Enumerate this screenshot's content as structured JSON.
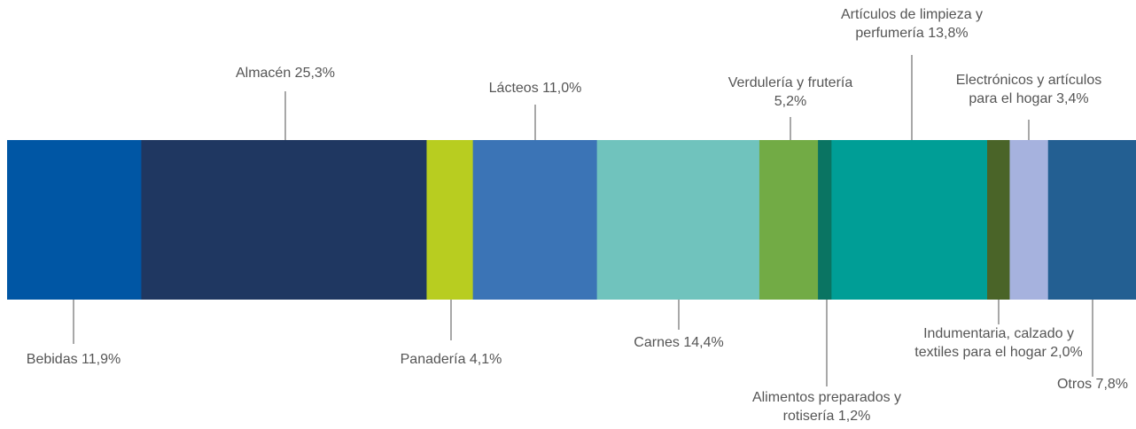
{
  "chart_data": {
    "type": "bar",
    "subtype": "stacked-100-horizontal",
    "title": "",
    "xlabel": "",
    "ylabel": "",
    "unit": "%",
    "total": 100,
    "series": [
      {
        "name": "Bebidas",
        "value": 11.9,
        "color": "#0056a4",
        "label_lines": [
          "Bebidas 11,9%"
        ],
        "label_side": "below"
      },
      {
        "name": "Almacén",
        "value": 25.3,
        "color": "#1f3761",
        "label_lines": [
          "Almacén 25,3%"
        ],
        "label_side": "above"
      },
      {
        "name": "Panadería",
        "value": 4.1,
        "color": "#b8cd20",
        "label_lines": [
          "Panadería 4,1%"
        ],
        "label_side": "below"
      },
      {
        "name": "Lácteos",
        "value": 11.0,
        "color": "#3b74b6",
        "label_lines": [
          "Lácteos 11,0%"
        ],
        "label_side": "above"
      },
      {
        "name": "Carnes",
        "value": 14.4,
        "color": "#70c3bd",
        "label_lines": [
          "Carnes 14,4%"
        ],
        "label_side": "below"
      },
      {
        "name": "Verdulería y frutería",
        "value": 5.2,
        "color": "#72ab45",
        "label_lines": [
          "Verdulería y frutería",
          "5,2%"
        ],
        "label_side": "above"
      },
      {
        "name": "Alimentos preparados y rotisería",
        "value": 1.2,
        "color": "#0a7462",
        "label_lines": [
          "Alimentos preparados y",
          "rotisería 1,2%"
        ],
        "label_side": "below"
      },
      {
        "name": "Artículos de limpieza y perfumería",
        "value": 13.8,
        "color": "#009e96",
        "label_lines": [
          "Artículos de limpieza y",
          "perfumería 13,8%"
        ],
        "label_side": "above"
      },
      {
        "name": "Indumentaria, calzado y textiles para el hogar",
        "value": 2.0,
        "color": "#4a6428",
        "label_lines": [
          "Indumentaria, calzado y",
          "textiles para el hogar 2,0%"
        ],
        "label_side": "below"
      },
      {
        "name": "Electrónicos y artículos para el hogar",
        "value": 3.4,
        "color": "#a6b2de",
        "label_lines": [
          "Electrónicos y artículos",
          "para el hogar 3,4%"
        ],
        "label_side": "above"
      },
      {
        "name": "Otros",
        "value": 7.8,
        "color": "#235f92",
        "label_lines": [
          "Otros 7,8%"
        ],
        "label_side": "below"
      }
    ]
  }
}
